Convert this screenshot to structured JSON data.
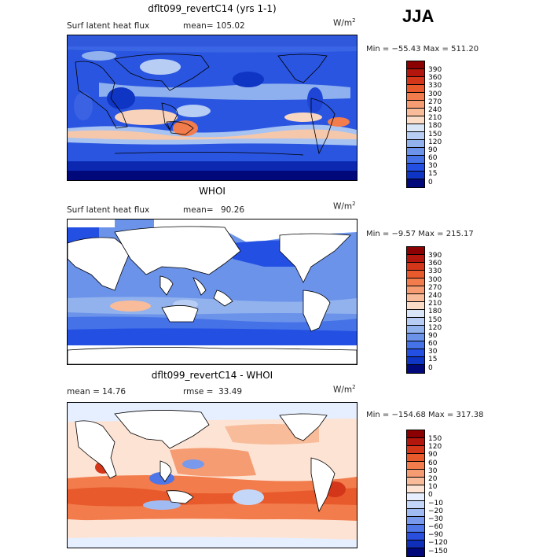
{
  "season": "JJA",
  "units": "W/m",
  "units_exp": "2",
  "panels": [
    {
      "title": "dflt099_revertC14 (yrs 1-1)",
      "left_label": "Surf latent heat flux",
      "stat_label": "mean=",
      "stat_value": "105.02",
      "minmax": "Min = −55.43 Max = 511.20",
      "colorbar": {
        "levels": [
          "390",
          "360",
          "330",
          "300",
          "270",
          "240",
          "210",
          "180",
          "150",
          "120",
          "90",
          "60",
          "30",
          "15",
          "0"
        ],
        "colors": [
          "#8b0000",
          "#b3160c",
          "#d4361a",
          "#e85a2c",
          "#f27c4c",
          "#f59c72",
          "#f8bc9a",
          "#fbdcc6",
          "#d8e6f8",
          "#b7cdf3",
          "#92b2ee",
          "#6b93ea",
          "#4672e8",
          "#2350e3",
          "#0f35c4",
          "#00087a"
        ]
      }
    },
    {
      "title": "WHOI",
      "left_label": "Surf latent heat flux",
      "stat_label": "mean=",
      "stat_value": "90.26",
      "minmax": "Min =  −9.57 Max = 215.17",
      "colorbar": {
        "levels": [
          "390",
          "360",
          "330",
          "300",
          "270",
          "240",
          "210",
          "180",
          "150",
          "120",
          "90",
          "60",
          "30",
          "15",
          "0"
        ],
        "colors": [
          "#8b0000",
          "#b3160c",
          "#d4361a",
          "#e85a2c",
          "#f27c4c",
          "#f59c72",
          "#f8bc9a",
          "#fbdcc6",
          "#d8e6f8",
          "#b7cdf3",
          "#92b2ee",
          "#6b93ea",
          "#4672e8",
          "#2350e3",
          "#0f35c4",
          "#00087a"
        ]
      }
    },
    {
      "title": "dflt099_revertC14 - WHOI",
      "left_label": "mean =",
      "stat_label": "rmse =",
      "left_value": "14.76",
      "stat_value": "33.49",
      "minmax": "Min = −154.68 Max = 317.38",
      "colorbar": {
        "levels": [
          "150",
          "120",
          "90",
          "60",
          "30",
          "20",
          "10",
          "0",
          "−10",
          "−20",
          "−30",
          "−60",
          "−90",
          "−120",
          "−150"
        ],
        "colors": [
          "#8b0000",
          "#b3160c",
          "#d4361a",
          "#e85a2c",
          "#f27c4c",
          "#f59c72",
          "#f8bc9a",
          "#fde3d4",
          "#e6efff",
          "#c5d7f8",
          "#a0bbf2",
          "#7899ec",
          "#4f76e6",
          "#2a4fde",
          "#0f2fb8",
          "#00087a"
        ]
      }
    }
  ]
}
